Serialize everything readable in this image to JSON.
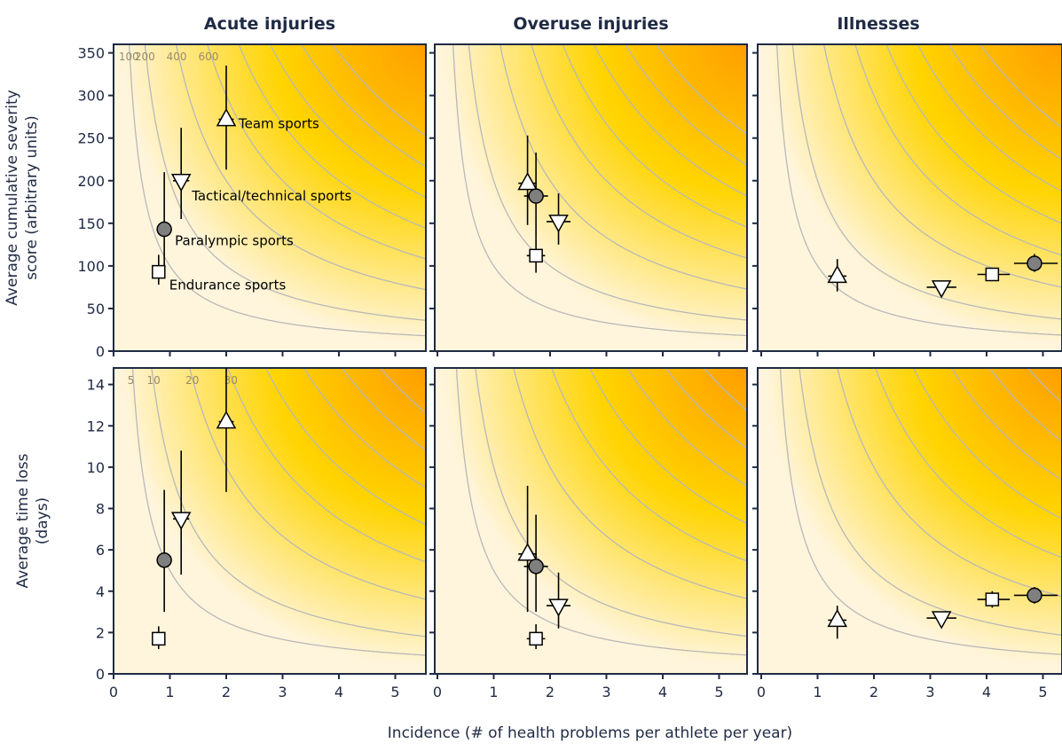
{
  "chart_data": {
    "type": "scatter",
    "column_titles": [
      "Acute injuries",
      "Overuse injuries",
      "Illnesses"
    ],
    "xlabel": "Incidence (# of health problems per athlete per year)",
    "xlim": [
      0,
      5.4
    ],
    "xticks": [
      "0",
      "1",
      "2",
      "3",
      "4",
      "5"
    ],
    "series_names": [
      "Team sports",
      "Tactical/technical sports",
      "Paralympic sports",
      "Endurance sports"
    ],
    "markers": {
      "Team sports": "triangle-up",
      "Tactical/technical sports": "triangle-down",
      "Paralympic sports": "circle",
      "Endurance sports": "square"
    },
    "colors": {
      "open_marker_fill": "#ffffff",
      "paralympic_fill": "#7f7f7f",
      "background_low": "#fff5dc",
      "background_mid": "#ffd400",
      "background_high": "#ff9e00",
      "isoline": "#b8b8b8",
      "axis": "#1f2a44"
    },
    "rows": [
      {
        "ylabel_lines": [
          "Average cumulative severity",
          "score (arbitrary units)"
        ],
        "ylim": [
          0,
          360
        ],
        "yticks": [
          "0",
          "50",
          "100",
          "150",
          "200",
          "250",
          "300",
          "350"
        ],
        "isolines": [
          "100",
          "200",
          "400",
          "600"
        ],
        "panels": [
          {
            "points": [
              {
                "series": "Team sports",
                "x": 2.0,
                "y": 272,
                "ylo": 213,
                "yhi": 335,
                "xlo": 1.93,
                "xhi": 2.07
              },
              {
                "series": "Tactical/technical sports",
                "x": 1.2,
                "y": 200,
                "ylo": 155,
                "yhi": 262,
                "xlo": 1.12,
                "xhi": 1.28
              },
              {
                "series": "Paralympic sports",
                "x": 0.9,
                "y": 143,
                "ylo": 100,
                "yhi": 210,
                "xlo": 0.83,
                "xhi": 0.97
              },
              {
                "series": "Endurance sports",
                "x": 0.8,
                "y": 93,
                "ylo": 78,
                "yhi": 113,
                "xlo": 0.76,
                "xhi": 0.84
              }
            ]
          },
          {
            "points": [
              {
                "series": "Team sports",
                "x": 1.6,
                "y": 197,
                "ylo": 148,
                "yhi": 253,
                "xlo": 1.5,
                "xhi": 1.7
              },
              {
                "series": "Paralympic sports",
                "x": 1.75,
                "y": 182,
                "ylo": 132,
                "yhi": 233,
                "xlo": 1.6,
                "xhi": 1.9
              },
              {
                "series": "Tactical/technical sports",
                "x": 2.15,
                "y": 152,
                "ylo": 125,
                "yhi": 185,
                "xlo": 2.0,
                "xhi": 2.3
              },
              {
                "series": "Endurance sports",
                "x": 1.75,
                "y": 112,
                "ylo": 92,
                "yhi": 132,
                "xlo": 1.65,
                "xhi": 1.85
              }
            ]
          },
          {
            "points": [
              {
                "series": "Team sports",
                "x": 1.35,
                "y": 88,
                "ylo": 70,
                "yhi": 108,
                "xlo": 1.25,
                "xhi": 1.45
              },
              {
                "series": "Tactical/technical sports",
                "x": 3.2,
                "y": 75,
                "ylo": 68,
                "yhi": 82,
                "xlo": 3.0,
                "xhi": 3.4
              },
              {
                "series": "Endurance sports",
                "x": 4.1,
                "y": 90,
                "ylo": 84,
                "yhi": 97,
                "xlo": 3.9,
                "xhi": 4.35
              },
              {
                "series": "Paralympic sports",
                "x": 4.85,
                "y": 103,
                "ylo": 93,
                "yhi": 114,
                "xlo": 4.55,
                "xhi": 5.2
              }
            ]
          }
        ]
      },
      {
        "ylabel_lines": [
          "Average time loss",
          "(days)"
        ],
        "ylim": [
          0,
          14.8
        ],
        "yticks": [
          "0",
          "2",
          "4",
          "6",
          "8",
          "10",
          "12",
          "14"
        ],
        "isolines": [
          "5",
          "10",
          "20",
          "30"
        ],
        "panels": [
          {
            "points": [
              {
                "series": "Team sports",
                "x": 2.0,
                "y": 12.2,
                "ylo": 8.8,
                "yhi": 14.8,
                "xlo": 1.93,
                "xhi": 2.07
              },
              {
                "series": "Tactical/technical sports",
                "x": 1.2,
                "y": 7.5,
                "ylo": 4.8,
                "yhi": 10.8,
                "xlo": 1.12,
                "xhi": 1.28
              },
              {
                "series": "Paralympic sports",
                "x": 0.9,
                "y": 5.5,
                "ylo": 3.0,
                "yhi": 8.9,
                "xlo": 0.83,
                "xhi": 0.97
              },
              {
                "series": "Endurance sports",
                "x": 0.8,
                "y": 1.7,
                "ylo": 1.2,
                "yhi": 2.3,
                "xlo": 0.76,
                "xhi": 0.84
              }
            ]
          },
          {
            "points": [
              {
                "series": "Team sports",
                "x": 1.6,
                "y": 5.8,
                "ylo": 3.0,
                "yhi": 9.1,
                "xlo": 1.5,
                "xhi": 1.7
              },
              {
                "series": "Paralympic sports",
                "x": 1.75,
                "y": 5.2,
                "ylo": 3.0,
                "yhi": 7.7,
                "xlo": 1.6,
                "xhi": 1.9
              },
              {
                "series": "Tactical/technical sports",
                "x": 2.15,
                "y": 3.3,
                "ylo": 2.2,
                "yhi": 4.9,
                "xlo": 2.0,
                "xhi": 2.3
              },
              {
                "series": "Endurance sports",
                "x": 1.75,
                "y": 1.7,
                "ylo": 1.2,
                "yhi": 2.4,
                "xlo": 1.65,
                "xhi": 1.85
              }
            ]
          },
          {
            "points": [
              {
                "series": "Team sports",
                "x": 1.35,
                "y": 2.6,
                "ylo": 1.7,
                "yhi": 3.3,
                "xlo": 1.25,
                "xhi": 1.45
              },
              {
                "series": "Tactical/technical sports",
                "x": 3.2,
                "y": 2.7,
                "ylo": 2.4,
                "yhi": 3.0,
                "xlo": 3.0,
                "xhi": 3.4
              },
              {
                "series": "Endurance sports",
                "x": 4.1,
                "y": 3.6,
                "ylo": 3.2,
                "yhi": 4.0,
                "xlo": 3.9,
                "xhi": 4.35
              },
              {
                "series": "Paralympic sports",
                "x": 4.85,
                "y": 3.8,
                "ylo": 3.4,
                "yhi": 4.2,
                "xlo": 4.55,
                "xhi": 5.2
              }
            ]
          }
        ]
      }
    ]
  }
}
